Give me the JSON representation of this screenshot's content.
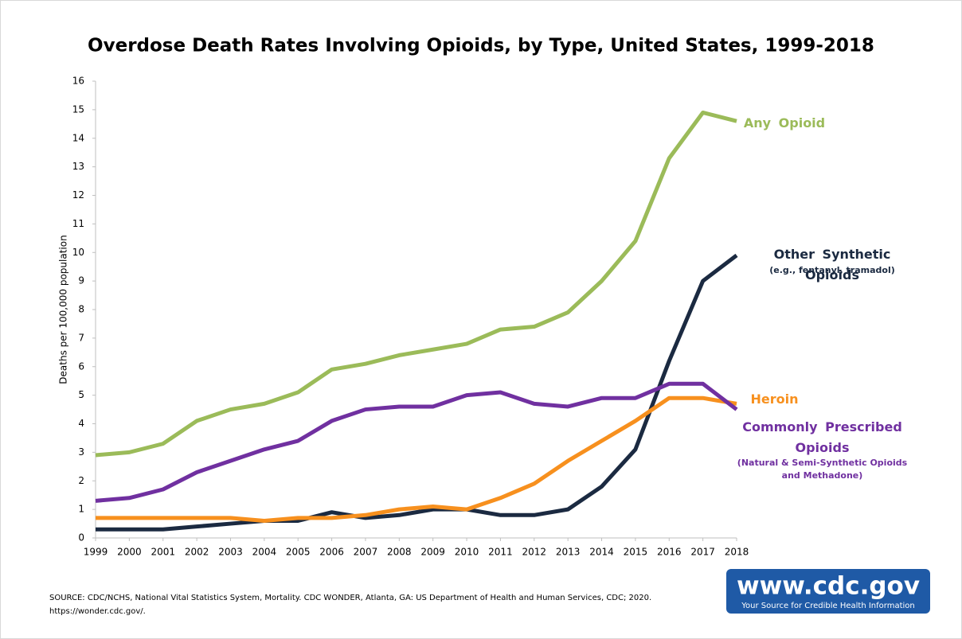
{
  "chart_data": {
    "type": "line",
    "title": "Overdose Death Rates Involving Opioids, by Type, United States, 1999-2018",
    "y_label": "Deaths per 100,000 population",
    "x": [
      1999,
      2000,
      2001,
      2002,
      2003,
      2004,
      2005,
      2006,
      2007,
      2008,
      2009,
      2010,
      2011,
      2012,
      2013,
      2014,
      2015,
      2016,
      2017,
      2018
    ],
    "xlim": [
      1999,
      2018
    ],
    "xticks": [
      1999,
      2000,
      2001,
      2002,
      2003,
      2004,
      2005,
      2006,
      2007,
      2008,
      2009,
      2010,
      2011,
      2012,
      2013,
      2014,
      2015,
      2016,
      2017,
      2018
    ],
    "ylim": [
      0,
      16
    ],
    "yticks": [
      0,
      1,
      2,
      3,
      4,
      5,
      6,
      7,
      8,
      9,
      10,
      11,
      12,
      13,
      14,
      15,
      16
    ],
    "grid": false,
    "series": [
      {
        "name": "Any Opioid",
        "color": "#9bbb59",
        "values": [
          2.9,
          3.0,
          3.3,
          4.1,
          4.5,
          4.7,
          5.1,
          5.9,
          6.1,
          6.4,
          6.6,
          6.8,
          7.3,
          7.4,
          7.9,
          9.0,
          10.4,
          13.3,
          14.9,
          14.6
        ]
      },
      {
        "name": "Other Synthetic Opioids",
        "sublabel": "(e.g., fentanyl, tramadol)",
        "color": "#1b2a41",
        "values": [
          0.3,
          0.3,
          0.3,
          0.4,
          0.5,
          0.6,
          0.6,
          0.9,
          0.7,
          0.8,
          1.0,
          1.0,
          0.8,
          0.8,
          1.0,
          1.8,
          3.1,
          6.2,
          9.0,
          9.9
        ]
      },
      {
        "name": "Heroin",
        "color": "#f7901e",
        "values": [
          0.7,
          0.7,
          0.7,
          0.7,
          0.7,
          0.6,
          0.7,
          0.7,
          0.8,
          1.0,
          1.1,
          1.0,
          1.4,
          1.9,
          2.7,
          3.4,
          4.1,
          4.9,
          4.9,
          4.7
        ]
      },
      {
        "name": "Commonly Prescribed Opioids",
        "sublabel": "(Natural & Semi-Synthetic Opioids and Methadone)",
        "color": "#7030a0",
        "values": [
          1.3,
          1.4,
          1.7,
          2.3,
          2.7,
          3.1,
          3.4,
          4.1,
          4.5,
          4.6,
          4.6,
          5.0,
          5.1,
          4.7,
          4.6,
          4.9,
          4.9,
          5.4,
          5.4,
          4.5
        ]
      }
    ],
    "source": [
      "SOURCE: CDC/NCHS, National Vital Statistics System, Mortality. CDC WONDER, Atlanta, GA: US Department of Health and Human Services, CDC; 2020.",
      "https://wonder.cdc.gov/."
    ],
    "logo": {
      "text": "www.cdc.gov",
      "tagline": "Your Source for Credible Health Information"
    }
  }
}
